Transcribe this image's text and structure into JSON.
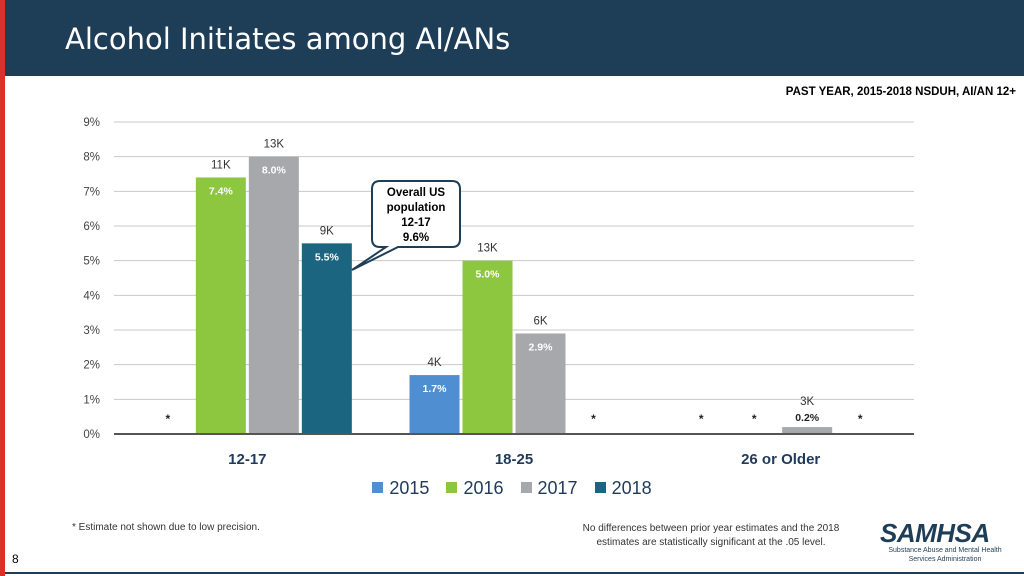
{
  "header": {
    "title": "Alcohol Initiates among AI/ANs"
  },
  "subtitle": "PAST YEAR, 2015-2018  NSDUH, AI/AN 12+",
  "colors": {
    "2015": "#4f8fd1",
    "2016": "#8dc63f",
    "2017": "#a6a8ab",
    "2018": "#1b6580",
    "header": "#1e3d57",
    "accent": "#d9322c"
  },
  "chart_data": {
    "type": "bar",
    "categories": [
      "12-17",
      "18-25",
      "26 or Older"
    ],
    "yticks": [
      "0%",
      "1%",
      "2%",
      "3%",
      "4%",
      "5%",
      "6%",
      "7%",
      "8%",
      "9%"
    ],
    "ylim": [
      0,
      9
    ],
    "grid": true,
    "legend_position": "bottom",
    "series": [
      {
        "name": "2015",
        "values": [
          null,
          1.7,
          null
        ],
        "labels": [
          "*",
          "1.7%",
          "*"
        ],
        "counts": [
          null,
          "4K",
          null
        ]
      },
      {
        "name": "2016",
        "values": [
          7.4,
          5.0,
          null
        ],
        "labels": [
          "7.4%",
          "5.0%",
          "*"
        ],
        "counts": [
          "11K",
          "13K",
          null
        ]
      },
      {
        "name": "2017",
        "values": [
          8.0,
          2.9,
          0.2
        ],
        "labels": [
          "8.0%",
          "2.9%",
          "0.2%"
        ],
        "counts": [
          "13K",
          "6K",
          "3K"
        ]
      },
      {
        "name": "2018",
        "values": [
          5.5,
          null,
          null
        ],
        "labels": [
          "5.5%",
          "*",
          "*"
        ],
        "counts": [
          "9K",
          null,
          null
        ]
      }
    ],
    "annotation": {
      "lines": [
        "Overall US",
        "population",
        "12-17",
        "9.6%"
      ]
    }
  },
  "legend": [
    "2015",
    "2016",
    "2017",
    "2018"
  ],
  "footnotes": {
    "left": "* Estimate not shown due to low precision.",
    "right_line1": "No differences between prior year estimates and the 2018",
    "right_line2": "estimates are statistically significant at the .05 level."
  },
  "page_number": "8",
  "logo": {
    "word": "SAMHSA",
    "line1": "Substance Abuse and Mental Health",
    "line2": "Services Administration"
  }
}
